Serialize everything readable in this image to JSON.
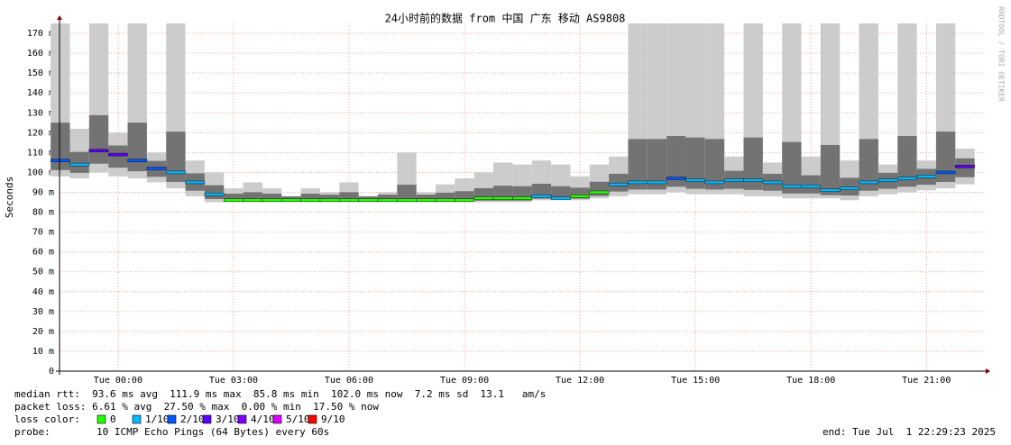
{
  "chart_data": {
    "type": "smokeping",
    "title": "24小时前的数据 from 中国 广东 移动 AS9808",
    "y_label": "Seconds",
    "watermark": "RRDTOOL / TOBI OETIKER",
    "xlim": [
      -1.52,
      22.47
    ],
    "xticks": [
      {
        "value": 0,
        "label": "Tue 00:00"
      },
      {
        "value": 3,
        "label": "Tue 03:00"
      },
      {
        "value": 6,
        "label": "Tue 06:00"
      },
      {
        "value": 9,
        "label": "Tue 09:00"
      },
      {
        "value": 12,
        "label": "Tue 12:00"
      },
      {
        "value": 15,
        "label": "Tue 15:00"
      },
      {
        "value": 18,
        "label": "Tue 18:00"
      },
      {
        "value": 21,
        "label": "Tue 21:00"
      }
    ],
    "ylim": [
      0,
      175
    ],
    "yticks": [
      0,
      {
        "value": 10,
        "label": "10 m"
      },
      {
        "value": 20,
        "label": "20 m"
      },
      {
        "value": 30,
        "label": "30 m"
      },
      {
        "value": 40,
        "label": "40 m"
      },
      {
        "value": 50,
        "label": "50 m"
      },
      {
        "value": 60,
        "label": "60 m"
      },
      {
        "value": 70,
        "label": "70 m"
      },
      {
        "value": 80,
        "label": "80 m"
      },
      {
        "value": 90,
        "label": "90 m"
      },
      {
        "value": 100,
        "label": "100 m"
      },
      {
        "value": 110,
        "label": "110 m"
      },
      {
        "value": 120,
        "label": "120 m"
      },
      {
        "value": 130,
        "label": "130 m"
      },
      {
        "value": 140,
        "label": "140 m"
      },
      {
        "value": 150,
        "label": "150 m"
      },
      {
        "value": 160,
        "label": "160 m"
      },
      {
        "value": 170,
        "label": "170 m"
      }
    ],
    "grid": true,
    "x": [
      -1.5,
      -1,
      -0.5,
      0,
      0.5,
      1,
      1.5,
      2,
      2.5,
      3,
      3.5,
      4,
      4.5,
      5,
      5.5,
      6,
      6.5,
      7,
      7.5,
      8,
      8.5,
      9,
      9.5,
      10,
      10.5,
      11,
      11.5,
      12,
      12.5,
      13,
      13.5,
      14,
      14.5,
      15,
      15.5,
      16,
      16.5,
      17,
      17.5,
      18,
      18.5,
      19,
      19.5,
      20,
      20.5,
      21,
      21.5,
      22
    ],
    "median": [
      106,
      104,
      111,
      109,
      106,
      102,
      100,
      95,
      89,
      86,
      86,
      86,
      86,
      86,
      86,
      86,
      86,
      86,
      86,
      86,
      86,
      86,
      87,
      87,
      87,
      88,
      87,
      88,
      90,
      94,
      95,
      95,
      97,
      96,
      95,
      96,
      96,
      95,
      93,
      93,
      91,
      92,
      95,
      96,
      97,
      98,
      100,
      103
    ],
    "low": [
      98,
      97,
      100,
      98,
      97,
      95,
      92,
      88,
      85,
      85,
      85,
      85,
      85,
      85,
      85,
      85,
      85,
      85,
      85,
      85,
      85,
      85,
      85,
      85,
      85,
      86,
      86,
      86,
      87,
      88,
      89,
      89,
      90,
      89,
      89,
      89,
      88,
      88,
      87,
      87,
      87,
      86,
      88,
      89,
      90,
      91,
      92,
      94
    ],
    "high": [
      175,
      122,
      175,
      120,
      175,
      110,
      175,
      106,
      100,
      92,
      95,
      92,
      88,
      92,
      90,
      95,
      88,
      90,
      110,
      90,
      94,
      97,
      100,
      105,
      104,
      106,
      104,
      98,
      104,
      108,
      175,
      175,
      175,
      175,
      175,
      108,
      175,
      105,
      175,
      108,
      175,
      106,
      175,
      104,
      175,
      106,
      175,
      112
    ],
    "loss": [
      "2/10",
      "1/10",
      "3/10",
      "3/10",
      "2/10",
      "2/10",
      "1/10",
      "1/10",
      "1/10",
      "0",
      "0",
      "0",
      "0",
      "0",
      "0",
      "0",
      "0",
      "0",
      "0",
      "0",
      "0",
      "0",
      "0",
      "0",
      "0",
      "1/10",
      "1/10",
      "0",
      "0",
      "1/10",
      "1/10",
      "1/10",
      "2/10",
      "1/10",
      "1/10",
      "1/10",
      "1/10",
      "1/10",
      "1/10",
      "1/10",
      "1/10",
      "1/10",
      "1/10",
      "1/10",
      "1/10",
      "1/10",
      "2/10",
      "3/10"
    ],
    "stats": [
      "median rtt:  93.6 ms avg  111.9 ms max  85.8 ms min  102.0 ms now  7.2 ms sd  13.1   am/s",
      "packet loss: 6.61 % avg  27.50 % max  0.00 % min  17.50 % now"
    ],
    "legend_title": "loss color:",
    "legend": [
      {
        "name": "0",
        "color": "#26ff00"
      },
      {
        "name": "1/10",
        "color": "#00b8ff"
      },
      {
        "name": "2/10",
        "color": "#0059ff"
      },
      {
        "name": "3/10",
        "color": "#5e00ff"
      },
      {
        "name": "4/10",
        "color": "#7e00ff"
      },
      {
        "name": "5/10",
        "color": "#dd00ff"
      },
      {
        "name": "9/10",
        "color": "#ff0000"
      }
    ],
    "probe_label": "probe:",
    "probe": "10 ICMP Echo Pings (64 Bytes) every 60s",
    "end": "end: Tue Jul  1 22:29:23 2025"
  }
}
